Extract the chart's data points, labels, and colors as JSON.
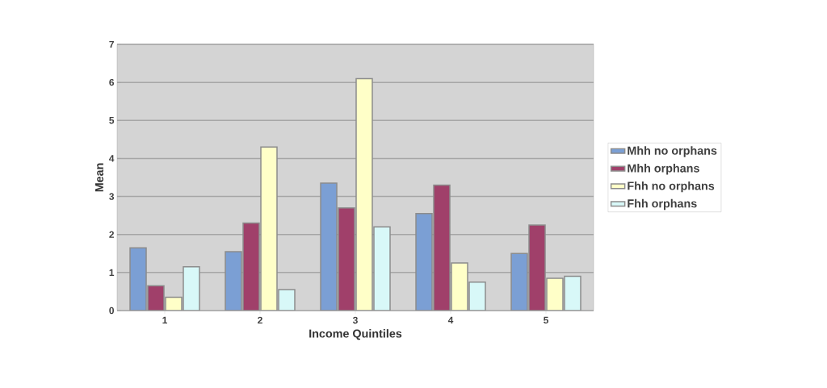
{
  "chart_data": {
    "type": "bar",
    "xlabel": "Income Quintiles",
    "ylabel": "Mean",
    "categories": [
      "1",
      "2",
      "3",
      "4",
      "5"
    ],
    "series": [
      {
        "name": "Mhh no orphans",
        "color": "#7b9fd4",
        "values": [
          1.65,
          1.55,
          3.35,
          2.55,
          1.5
        ]
      },
      {
        "name": "Mhh orphans",
        "color": "#a0406a",
        "values": [
          0.65,
          2.3,
          2.7,
          3.3,
          2.25
        ]
      },
      {
        "name": "Fhh no orphans",
        "color": "#ffffc8",
        "values": [
          0.35,
          4.3,
          6.1,
          1.25,
          0.85
        ]
      },
      {
        "name": "Fhh orphans",
        "color": "#d8f8f8",
        "values": [
          1.15,
          0.55,
          2.2,
          0.75,
          0.9
        ]
      }
    ],
    "ylim": [
      0,
      7
    ],
    "yticks": [
      0,
      1,
      2,
      3,
      4,
      5,
      6,
      7
    ],
    "grid": "y",
    "legend": "right"
  }
}
